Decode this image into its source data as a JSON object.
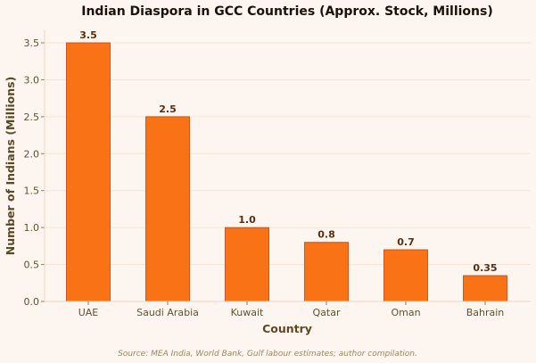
{
  "chart_data": {
    "type": "bar",
    "title": "Indian Diaspora in GCC Countries (Approx. Stock, Millions)",
    "xlabel": "Country",
    "ylabel": "Number of Indians (Millions)",
    "categories": [
      "UAE",
      "Saudi Arabia",
      "Kuwait",
      "Qatar",
      "Oman",
      "Bahrain"
    ],
    "values": [
      3.5,
      2.5,
      1.0,
      0.8,
      0.7,
      0.35
    ],
    "value_labels": [
      "3.5",
      "2.5",
      "1.0",
      "0.8",
      "0.7",
      "0.35"
    ],
    "yticks": [
      0.0,
      0.5,
      1.0,
      1.5,
      2.0,
      2.5,
      3.0,
      3.5
    ],
    "ytick_labels": [
      "0.0",
      "0.5",
      "1.0",
      "1.5",
      "2.0",
      "2.5",
      "3.0",
      "3.5"
    ],
    "ylim": [
      0,
      3.675
    ],
    "grid": "horizontal",
    "source_note": "Source: MEA India, World Bank, Gulf labour estimates; author compilation.",
    "colors": {
      "bar": "#f97316",
      "bar_edge": "#c2410c",
      "grid": "#f2e5d6",
      "background": "#fdf6f0"
    }
  }
}
